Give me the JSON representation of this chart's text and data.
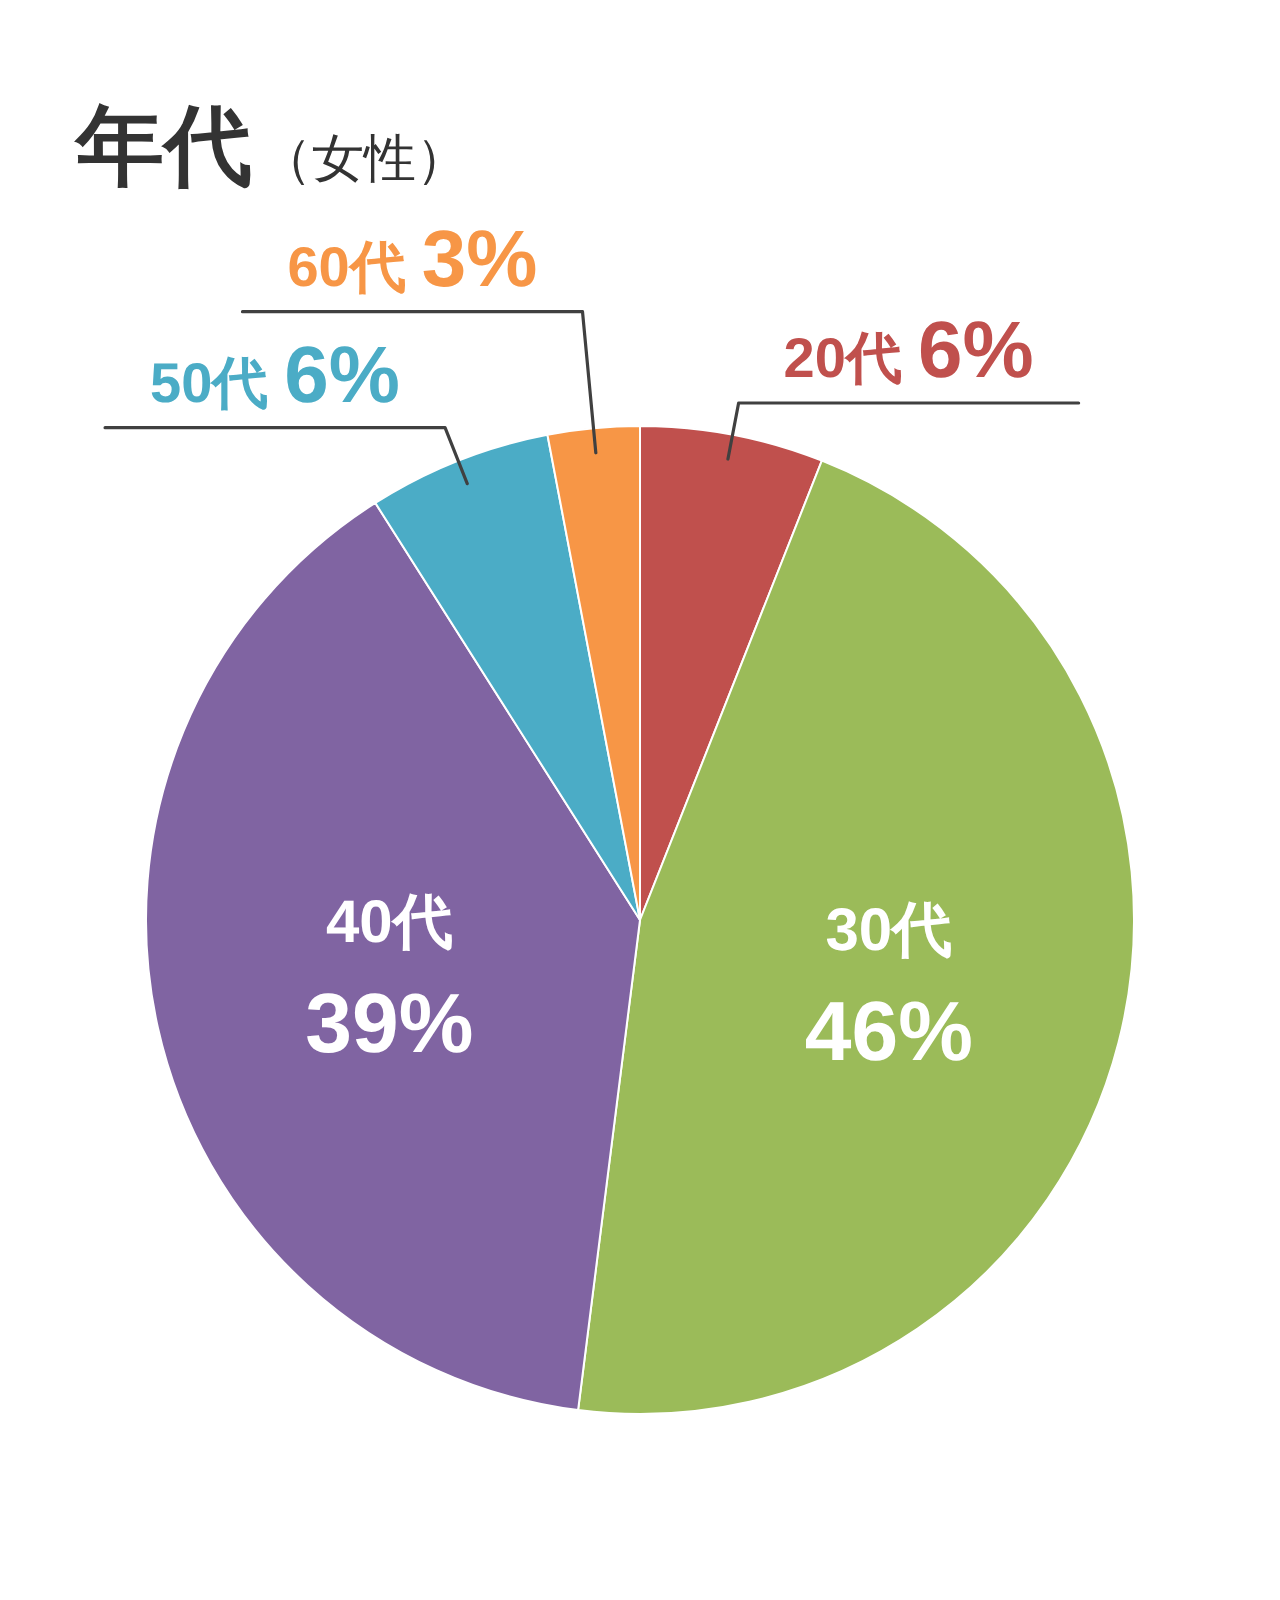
{
  "chart_data": {
    "type": "pie",
    "title": "年代",
    "subtitle": "（女性）",
    "categories": [
      "20代",
      "30代",
      "40代",
      "50代",
      "60代"
    ],
    "values": [
      6,
      46,
      39,
      6,
      3
    ],
    "colors": [
      "#c0504d",
      "#9bbb59",
      "#8064a2",
      "#4bacc6",
      "#f79646"
    ],
    "value_labels": [
      "6%",
      "46%",
      "39%",
      "6%",
      "3%"
    ]
  }
}
